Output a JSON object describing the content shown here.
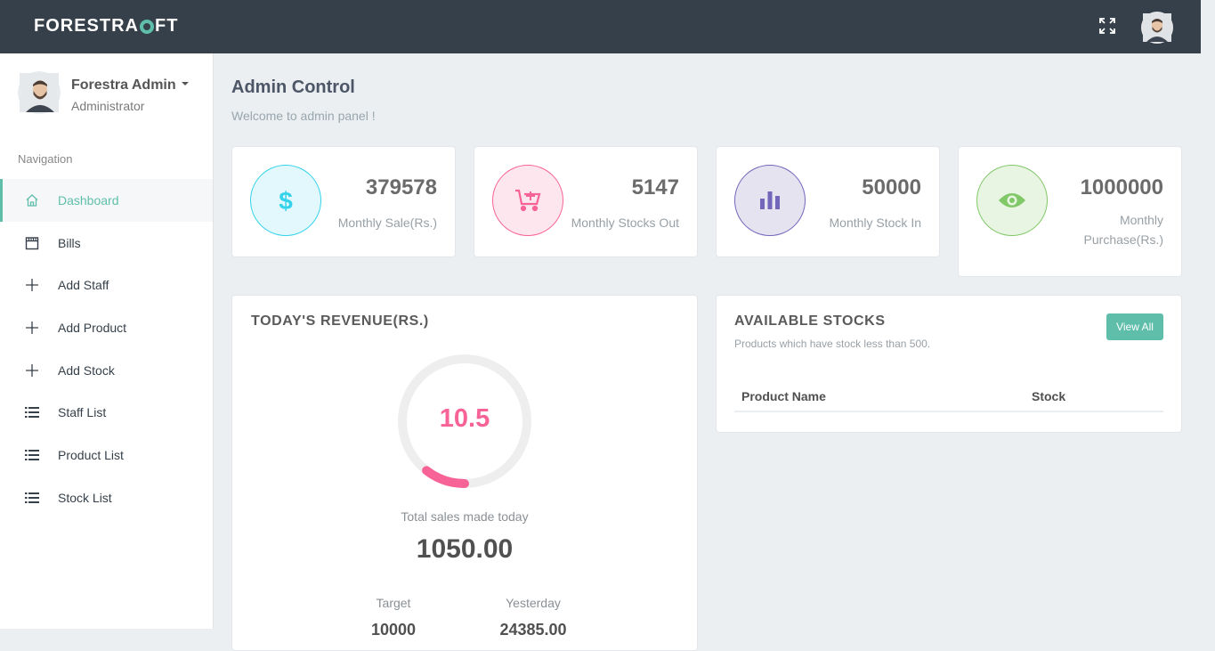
{
  "brand": {
    "name_part1": "FORESTRA",
    "name_part2": "FT",
    "accent_color": "#5fbeaa"
  },
  "topbar": {
    "fullscreen_icon": "fullscreen-icon",
    "avatar": "user-avatar"
  },
  "user": {
    "name": "Forestra Admin",
    "role": "Administrator"
  },
  "sidebar": {
    "nav_title": "Navigation",
    "items": [
      {
        "label": "Dashboard",
        "icon": "home-icon",
        "active": true
      },
      {
        "label": "Bills",
        "icon": "calendar-icon",
        "active": false
      },
      {
        "label": "Add Staff",
        "icon": "plus-icon",
        "active": false
      },
      {
        "label": "Add Product",
        "icon": "plus-icon",
        "active": false
      },
      {
        "label": "Add Stock",
        "icon": "plus-icon",
        "active": false
      },
      {
        "label": "Staff List",
        "icon": "list-icon",
        "active": false
      },
      {
        "label": "Product List",
        "icon": "list-icon",
        "active": false
      },
      {
        "label": "Stock List",
        "icon": "list-icon",
        "active": false
      }
    ]
  },
  "header": {
    "title": "Admin Control",
    "subtitle": "Welcome to admin panel !"
  },
  "stats": [
    {
      "value": "379578",
      "label": "Monthly Sale(Rs.)",
      "icon": "dollar-icon",
      "color": "#34d3eb",
      "bg": "#e3f8fc"
    },
    {
      "value": "5147",
      "label": "Monthly Stocks Out",
      "icon": "cart-plus-icon",
      "color": "#f76397",
      "bg": "#fde6ee"
    },
    {
      "value": "50000",
      "label": "Monthly Stock In",
      "icon": "bar-chart-icon",
      "color": "#7266ba",
      "bg": "#e6e3f1"
    },
    {
      "value": "1000000",
      "label": "Monthly Purchase(Rs.)",
      "icon": "eye-icon",
      "color": "#81c868",
      "bg": "#e8f5e3"
    }
  ],
  "revenue": {
    "title": "Today's Revenue(Rs.)",
    "gauge_value": "10.5",
    "gauge_fraction": 0.105,
    "gauge_color": "#f76397",
    "caption": "Total sales made today",
    "total": "1050.00",
    "target_label": "Target",
    "target_value": "10000",
    "yesterday_label": "Yesterday",
    "yesterday_value": "24385.00"
  },
  "stocks": {
    "title": "Available Stocks",
    "subtitle": "Products which have stock less than 500.",
    "view_all": "View All",
    "columns": [
      "Product Name",
      "Stock"
    ]
  }
}
